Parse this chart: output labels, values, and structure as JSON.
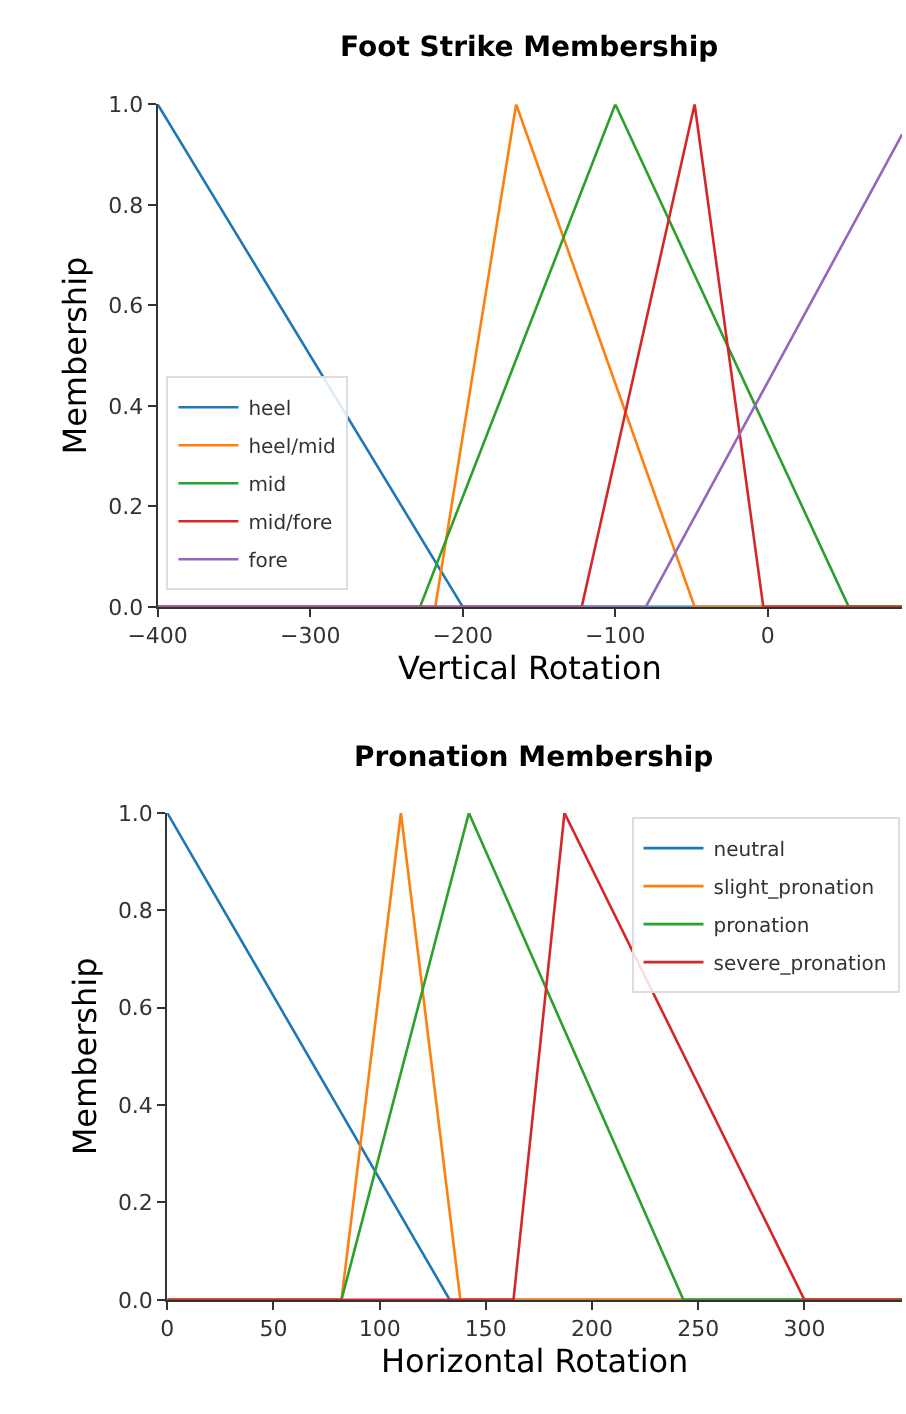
{
  "chart_data": [
    {
      "type": "line",
      "title": "Foot Strike Membership",
      "xlabel": "Vertical Rotation",
      "ylabel": "Membership",
      "series": [
        {
          "name": "heel",
          "color": "#1f77b4",
          "x": [
            -400,
            -200,
            88
          ],
          "values": [
            1,
            0,
            0
          ]
        },
        {
          "name": "heel/mid",
          "color": "#ff7f0e",
          "x": [
            -400,
            -218,
            -165,
            -48,
            88
          ],
          "values": [
            0,
            0,
            1,
            0,
            0
          ]
        },
        {
          "name": "mid",
          "color": "#2ca02c",
          "x": [
            -400,
            -228,
            -100,
            53,
            88
          ],
          "values": [
            0,
            0,
            1,
            0,
            0
          ]
        },
        {
          "name": "mid/fore",
          "color": "#d62728",
          "x": [
            -400,
            -122,
            -48,
            -3,
            88
          ],
          "values": [
            0,
            0,
            1,
            0,
            0
          ]
        },
        {
          "name": "fore",
          "color": "#9467bd",
          "x": [
            -400,
            -80,
            88
          ],
          "values": [
            0,
            0,
            0.94
          ]
        }
      ],
      "xlim": [
        -400,
        88
      ],
      "xticks": [
        {
          "value": -400,
          "label": "−400"
        },
        {
          "value": -300,
          "label": "−300"
        },
        {
          "value": -200,
          "label": "−200"
        },
        {
          "value": -100,
          "label": "−100"
        },
        0
      ],
      "ylim": [
        0,
        1
      ],
      "yticks": [
        {
          "value": 0,
          "label": "0.0"
        },
        {
          "value": 0.2,
          "label": "0.2"
        },
        {
          "value": 0.4,
          "label": "0.4"
        },
        {
          "value": 0.6,
          "label": "0.6"
        },
        {
          "value": 0.8,
          "label": "0.8"
        },
        {
          "value": 1,
          "label": "1.0"
        }
      ],
      "legend": "bottom left",
      "grid": false,
      "line_style": "solid"
    },
    {
      "type": "line",
      "title": "Pronation Membership",
      "xlabel": "Horizontal Rotation",
      "ylabel": "Membership",
      "series": [
        {
          "name": "neutral",
          "color": "#1f77b4",
          "x": [
            0,
            133,
            346
          ],
          "values": [
            1,
            0,
            0
          ]
        },
        {
          "name": "slight_pronation",
          "color": "#ff7f0e",
          "x": [
            0,
            82,
            110,
            138,
            346
          ],
          "values": [
            0,
            0,
            1,
            0,
            0
          ]
        },
        {
          "name": "pronation",
          "color": "#2ca02c",
          "x": [
            0,
            82,
            142,
            243,
            346
          ],
          "values": [
            0,
            0,
            1,
            0,
            0
          ]
        },
        {
          "name": "severe_pronation",
          "color": "#d62728",
          "x": [
            0,
            163,
            187,
            300,
            346
          ],
          "values": [
            0,
            0,
            1,
            0,
            0
          ]
        }
      ],
      "xlim": [
        0,
        346
      ],
      "xticks": [
        0,
        50,
        100,
        150,
        200,
        250,
        300
      ],
      "ylim": [
        0,
        1
      ],
      "yticks": [
        {
          "value": 0,
          "label": "0.0"
        },
        {
          "value": 0.2,
          "label": "0.2"
        },
        {
          "value": 0.4,
          "label": "0.4"
        },
        {
          "value": 0.6,
          "label": "0.6"
        },
        {
          "value": 0.8,
          "label": "0.8"
        },
        {
          "value": 1,
          "label": "1.0"
        }
      ],
      "legend": "top right",
      "grid": false,
      "line_style": "solid"
    }
  ]
}
